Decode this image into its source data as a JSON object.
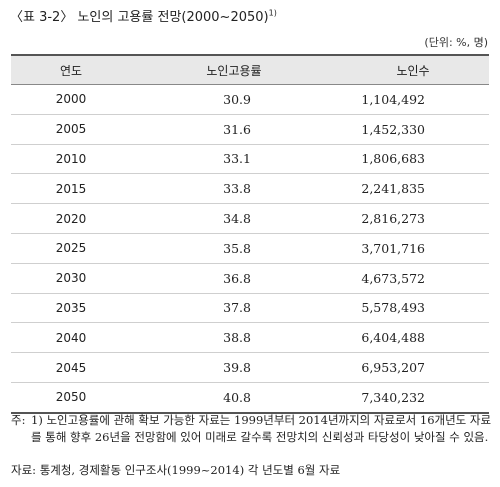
{
  "title": {
    "text": "〈표 3-2〉 노인의 고용률 전망(2000~2050)",
    "sup": "1)"
  },
  "unit": "(단위: %, 명)",
  "table": {
    "headers": [
      "연도",
      "노인고용률",
      "노인수"
    ],
    "rows": [
      {
        "year": "2000",
        "rate": "30.9",
        "count": "1,104,492"
      },
      {
        "year": "2005",
        "rate": "31.6",
        "count": "1,452,330"
      },
      {
        "year": "2010",
        "rate": "33.1",
        "count": "1,806,683"
      },
      {
        "year": "2015",
        "rate": "33.8",
        "count": "2,241,835"
      },
      {
        "year": "2020",
        "rate": "34.8",
        "count": "2,816,273"
      },
      {
        "year": "2025",
        "rate": "35.8",
        "count": "3,701,716"
      },
      {
        "year": "2030",
        "rate": "36.8",
        "count": "4,673,572"
      },
      {
        "year": "2035",
        "rate": "37.8",
        "count": "5,578,493"
      },
      {
        "year": "2040",
        "rate": "38.8",
        "count": "6,404,488"
      },
      {
        "year": "2045",
        "rate": "39.8",
        "count": "6,953,207"
      },
      {
        "year": "2050",
        "rate": "40.8",
        "count": "7,340,232"
      }
    ]
  },
  "note": {
    "mark": "주:",
    "text": "1) 노인고용률에 관해 확보 가능한 자료는 1999년부터 2014년까지의 자료로서 16개년도 자료를 통해 향후 26년을 전망함에 있어 미래로 갈수록 전망치의 신뢰성과 타당성이 낮아질 수 있음."
  },
  "source": "자료: 통계청, 경제활동 인구조사(1999~2014) 각 년도별 6월 자료"
}
